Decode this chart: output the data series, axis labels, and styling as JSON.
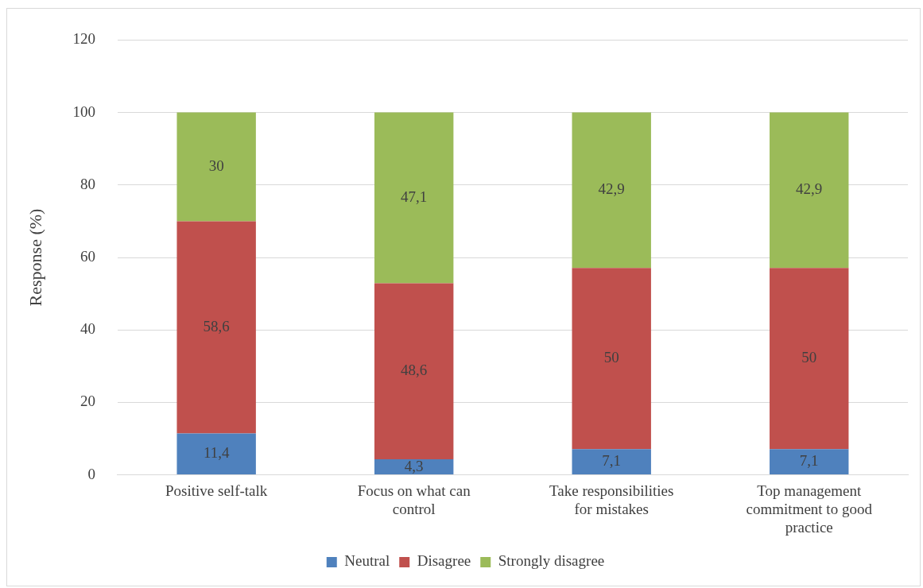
{
  "chart_data": {
    "type": "bar",
    "stacked": true,
    "ylabel": "Response (%)",
    "categories": [
      "Positive self-talk",
      "Focus on what can control",
      "Take responsibilities for mistakes",
      "Top management commitment to good practice"
    ],
    "series": [
      {
        "name": "Neutral",
        "color": "#4f81bd",
        "values": [
          11.4,
          4.3,
          7.1,
          7.1
        ],
        "value_labels": [
          "11,4",
          "4,3",
          "7,1",
          "7,1"
        ]
      },
      {
        "name": "Disagree",
        "color": "#c0504d",
        "values": [
          58.6,
          48.6,
          50,
          50
        ],
        "value_labels": [
          "58,6",
          "48,6",
          "50",
          "50"
        ]
      },
      {
        "name": "Strongly disagree",
        "color": "#9bbb59",
        "values": [
          30,
          47.1,
          42.9,
          42.9
        ],
        "value_labels": [
          "30",
          "47,1",
          "42,9",
          "42,9"
        ]
      }
    ],
    "ylim": [
      0,
      120
    ],
    "yticks": [
      0,
      20,
      40,
      60,
      80,
      100,
      120
    ],
    "grid": "y",
    "legend": "bottom"
  }
}
